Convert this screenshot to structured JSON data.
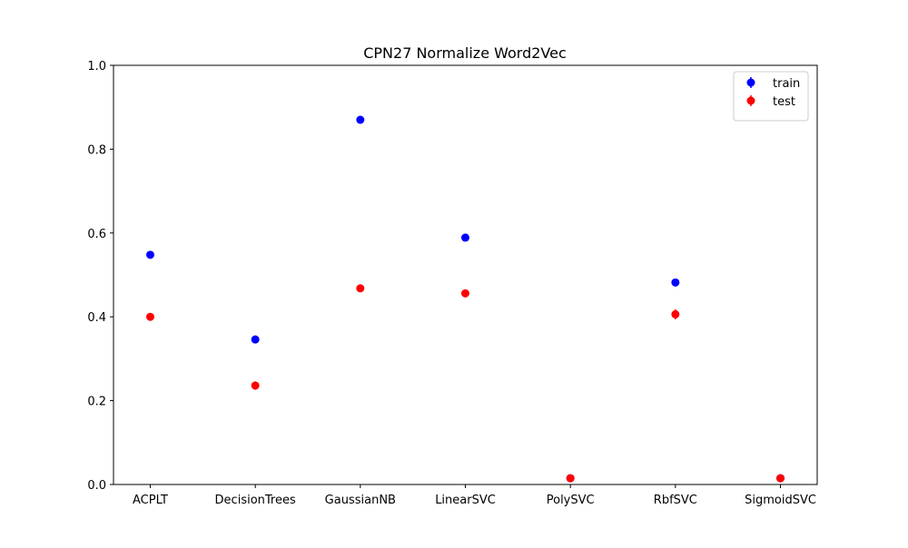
{
  "chart_data": {
    "type": "scatter",
    "title": "CPN27 Normalize Word2Vec",
    "xlabel": "",
    "ylabel": "",
    "categories": [
      "ACPLT",
      "DecisionTrees",
      "GaussianNB",
      "LinearSVC",
      "PolySVC",
      "RbfSVC",
      "SigmoidSVC"
    ],
    "ylim": [
      0.0,
      1.0
    ],
    "yticks": [
      0.0,
      0.2,
      0.4,
      0.6,
      0.8,
      1.0
    ],
    "ytick_labels": [
      "0.0",
      "0.2",
      "0.4",
      "0.6",
      "0.8",
      "1.0"
    ],
    "grid": false,
    "legend_position": "top-right",
    "error_bars": true,
    "series": [
      {
        "name": "train",
        "color": "#0000ff",
        "values": [
          0.548,
          0.346,
          0.87,
          0.589,
          0.015,
          0.482,
          0.015
        ],
        "errors": [
          0.004,
          0.004,
          0.004,
          0.004,
          0.002,
          0.004,
          0.002
        ]
      },
      {
        "name": "test",
        "color": "#ff0000",
        "values": [
          0.4,
          0.236,
          0.468,
          0.456,
          0.015,
          0.406,
          0.015
        ],
        "errors": [
          0.004,
          0.01,
          0.008,
          0.004,
          0.002,
          0.012,
          0.002
        ]
      }
    ]
  }
}
